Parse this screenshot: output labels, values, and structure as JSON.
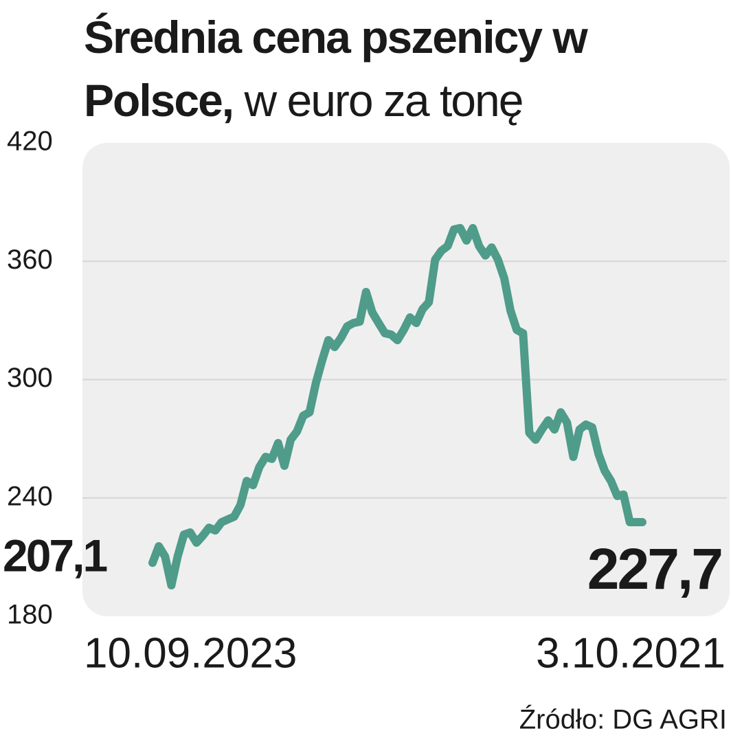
{
  "chart_data": {
    "type": "line",
    "title": "Średnia cena pszenicy w Polsce,",
    "subtitle": "w euro za tonę",
    "source": "Źródło: DG AGRI",
    "categories": [
      "10.09.2023",
      null,
      null,
      null,
      null,
      null,
      null,
      null,
      null,
      null,
      null,
      null,
      null,
      null,
      null,
      null,
      null,
      null,
      null,
      null,
      null,
      null,
      null,
      null,
      null,
      null,
      null,
      null,
      null,
      null,
      null,
      null,
      null,
      null,
      null,
      null,
      null,
      null,
      null,
      null,
      null,
      null,
      null,
      null,
      null,
      null,
      null,
      null,
      null,
      null,
      null,
      null,
      null,
      null,
      null,
      null,
      null,
      null,
      null,
      null,
      null,
      null,
      null,
      null,
      null,
      null,
      null,
      null,
      null,
      null,
      null,
      null,
      null,
      null,
      null,
      null,
      null,
      null,
      "3.10.2021"
    ],
    "values": [
      207.1,
      215.5,
      210.3,
      195.7,
      210.3,
      221.4,
      222.5,
      217.3,
      220.8,
      224.9,
      223.5,
      227.7,
      229.1,
      230.5,
      236.4,
      248.6,
      246.5,
      255.6,
      260.8,
      259.8,
      267.8,
      256.3,
      269.5,
      273.7,
      281.7,
      283.4,
      298.1,
      309.6,
      320.0,
      316.5,
      321.1,
      327.0,
      328.7,
      329.4,
      344.4,
      334.0,
      328.7,
      323.5,
      322.8,
      320.0,
      325.2,
      331.5,
      328.7,
      335.7,
      339.2,
      360.8,
      365.3,
      367.7,
      376.1,
      376.8,
      370.5,
      376.8,
      367.7,
      362.9,
      367.0,
      360.8,
      351.4,
      335.0,
      325.2,
      323.5,
      273.0,
      269.5,
      274.7,
      279.3,
      274.7,
      283.4,
      278.2,
      260.8,
      274.7,
      277.2,
      275.8,
      262.5,
      253.8,
      248.6,
      241.0,
      241.7,
      227.7,
      227.7,
      227.7
    ],
    "value_labels": [
      "207,1",
      null,
      null,
      null,
      null,
      null,
      null,
      null,
      null,
      null,
      null,
      null,
      null,
      null,
      null,
      null,
      null,
      null,
      null,
      null,
      null,
      null,
      null,
      null,
      null,
      null,
      null,
      null,
      null,
      null,
      null,
      null,
      null,
      null,
      null,
      null,
      null,
      null,
      null,
      null,
      null,
      null,
      null,
      null,
      null,
      null,
      null,
      null,
      null,
      null,
      null,
      null,
      null,
      null,
      null,
      null,
      null,
      null,
      null,
      null,
      null,
      null,
      null,
      null,
      null,
      null,
      null,
      null,
      null,
      null,
      null,
      null,
      null,
      null,
      null,
      null,
      null,
      null,
      "227,7"
    ],
    "color": "#4e9c89",
    "ylim": [
      180,
      420
    ],
    "yticks": [
      180,
      240,
      300,
      360,
      420
    ],
    "grid": true
  }
}
